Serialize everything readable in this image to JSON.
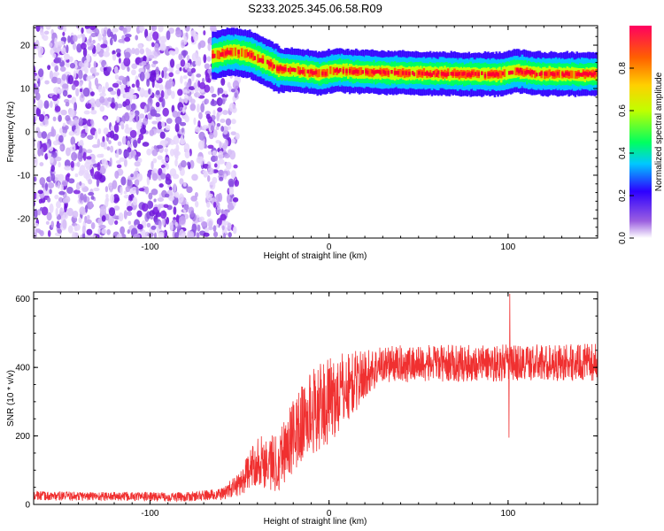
{
  "figure_title": "S233.2025.345.06.58.R09",
  "colors": {
    "snr_line": "#f03030",
    "trace_band": "#e82020",
    "noise_scatter": "#7a1fe0"
  },
  "chart_data": [
    {
      "type": "heatmap",
      "xlabel": "Height of straight line (km)",
      "ylabel": "Frequency (Hz)",
      "xlim": [
        -165,
        150
      ],
      "ylim": [
        -24.5,
        24.5
      ],
      "x_ticks": [
        -100,
        0,
        100
      ],
      "y_ticks": [
        -20,
        -10,
        0,
        10,
        20
      ],
      "colorbar": {
        "label": "Normalized spectral amplitude",
        "range": [
          0,
          1
        ],
        "ticks": [
          0.0,
          0.2,
          0.4,
          0.6,
          0.8
        ],
        "colors": [
          "#ffffff",
          "#9b5fe0",
          "#2d00ff",
          "#00c8ff",
          "#00ff60",
          "#c0ff00",
          "#ffd000",
          "#ff6000",
          "#ff0060"
        ]
      },
      "noise_region": {
        "x_range": [
          -165,
          -55
        ],
        "amplitude": 0.1
      },
      "trace": [
        {
          "x": -65,
          "freq": 17.5
        },
        {
          "x": -55,
          "freq": 18.5
        },
        {
          "x": -45,
          "freq": 18.0
        },
        {
          "x": -35,
          "freq": 16.0
        },
        {
          "x": -28,
          "freq": 14.5
        },
        {
          "x": -15,
          "freq": 14.0
        },
        {
          "x": -5,
          "freq": 13.5
        },
        {
          "x": 5,
          "freq": 14.2
        },
        {
          "x": 20,
          "freq": 13.8
        },
        {
          "x": 50,
          "freq": 13.5
        },
        {
          "x": 80,
          "freq": 13.3
        },
        {
          "x": 95,
          "freq": 13.2
        },
        {
          "x": 105,
          "freq": 14.0
        },
        {
          "x": 120,
          "freq": 13.3
        },
        {
          "x": 150,
          "freq": 13.3
        }
      ]
    },
    {
      "type": "line",
      "xlabel": "Height of straight line (km)",
      "ylabel": "SNR (10 * v/v)",
      "xlim": [
        -165,
        150
      ],
      "ylim": [
        0,
        620
      ],
      "x_ticks": [
        -100,
        0,
        100
      ],
      "y_ticks": [
        0,
        200,
        400,
        600
      ],
      "snr_profile": [
        {
          "x": -165,
          "mean": 25,
          "spread": 15
        },
        {
          "x": -80,
          "mean": 22,
          "spread": 15
        },
        {
          "x": -60,
          "mean": 30,
          "spread": 20
        },
        {
          "x": -50,
          "mean": 60,
          "spread": 40
        },
        {
          "x": -40,
          "mean": 130,
          "spread": 80
        },
        {
          "x": -30,
          "mean": 120,
          "spread": 100
        },
        {
          "x": -20,
          "mean": 200,
          "spread": 120
        },
        {
          "x": -10,
          "mean": 270,
          "spread": 140
        },
        {
          "x": 0,
          "mean": 300,
          "spread": 140
        },
        {
          "x": 10,
          "mean": 340,
          "spread": 120
        },
        {
          "x": 20,
          "mean": 380,
          "spread": 80
        },
        {
          "x": 30,
          "mean": 410,
          "spread": 60
        },
        {
          "x": 150,
          "mean": 415,
          "spread": 60
        }
      ],
      "spikes": [
        {
          "x": 101,
          "y": 615
        },
        {
          "x": 100.5,
          "y": 195
        }
      ]
    }
  ]
}
